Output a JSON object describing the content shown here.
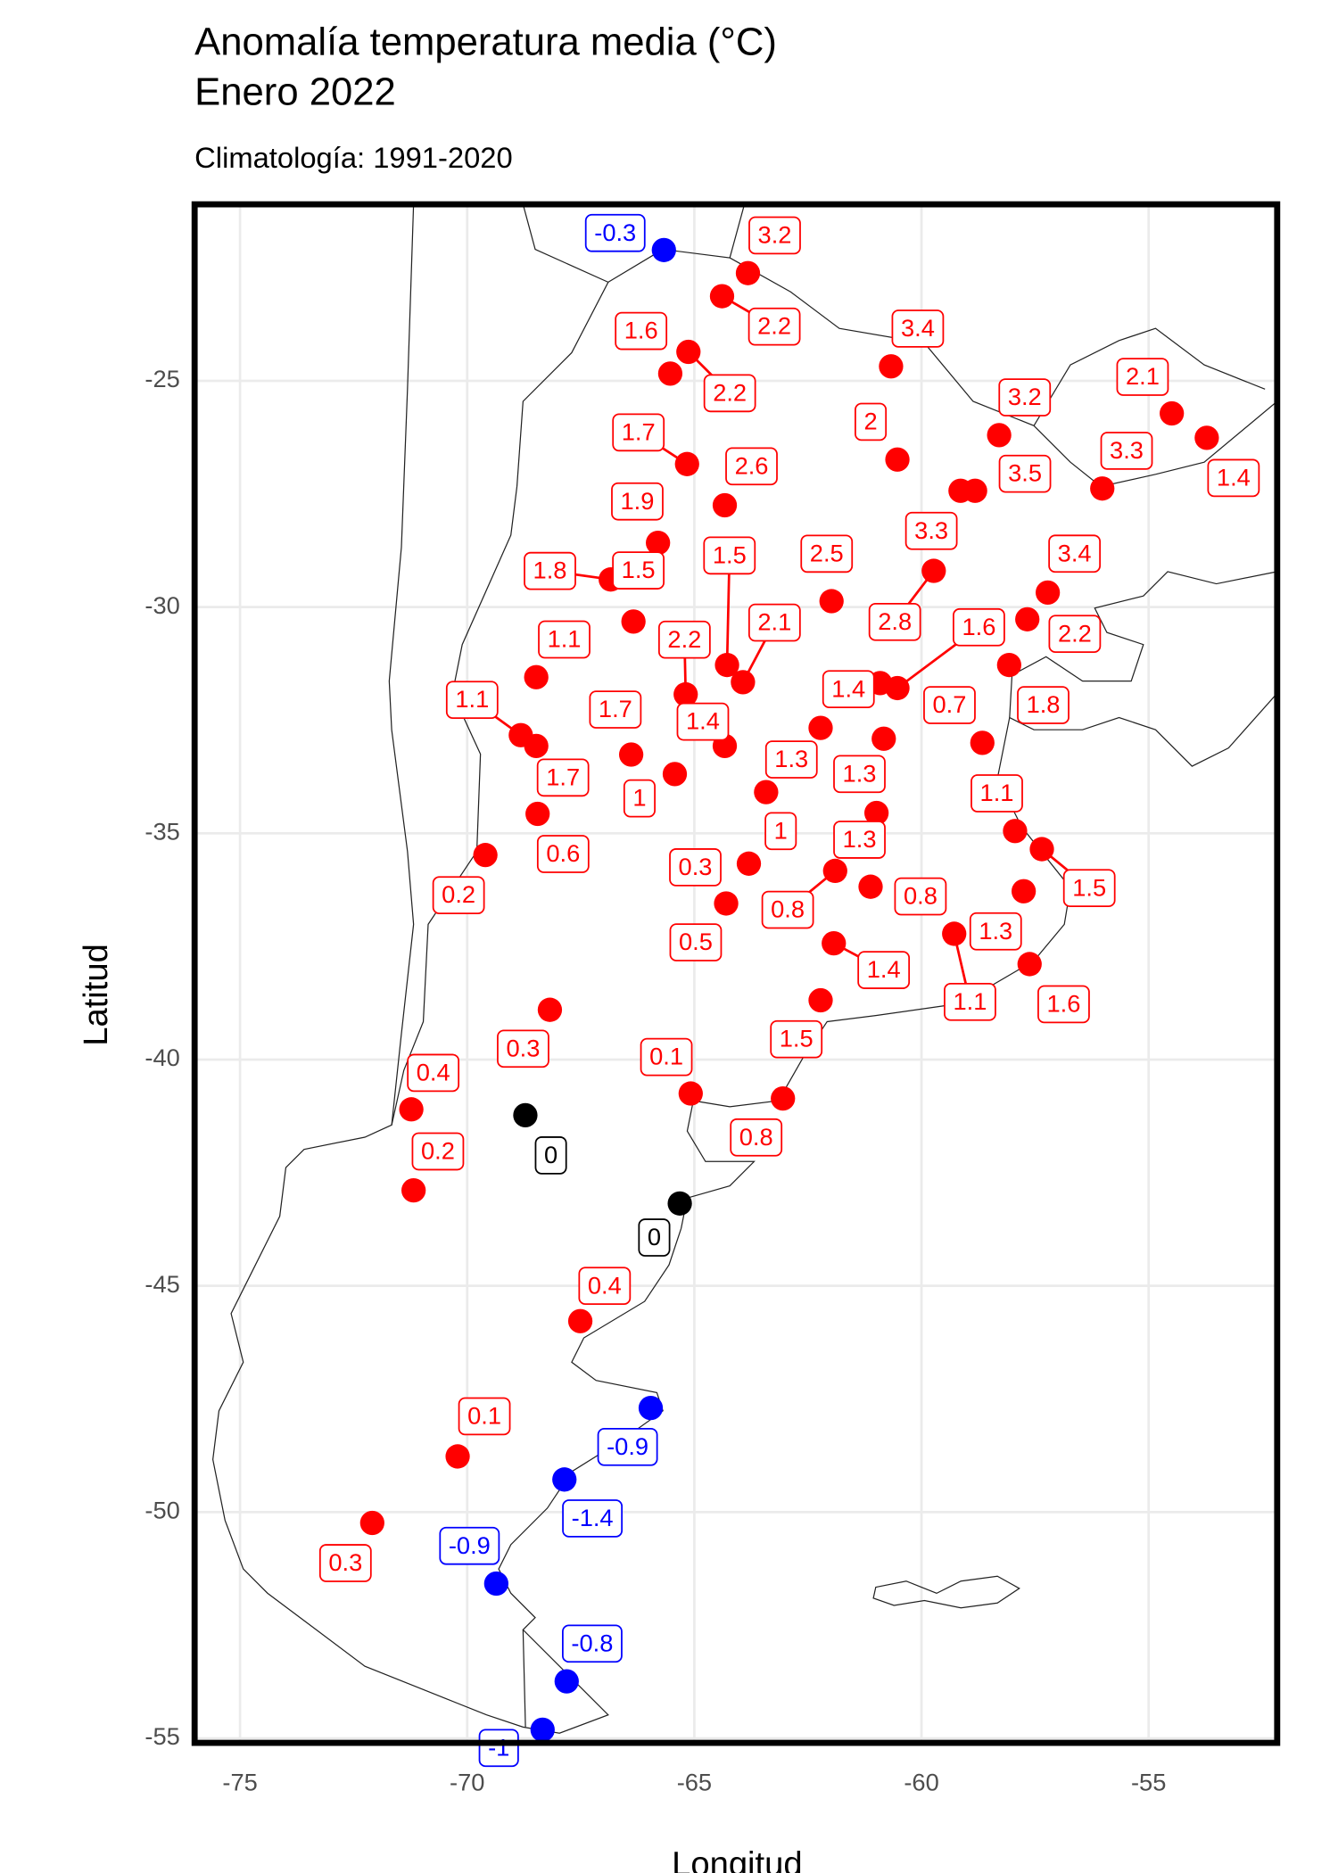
{
  "chart_data": {
    "type": "scatter",
    "title": [
      "Anomalía temperatura media (°C)",
      "Enero 2022"
    ],
    "subtitle": "Climatología: 1991-2020",
    "x_label": "Longitud",
    "y_label": "Latitud",
    "xlim": [
      -76,
      -52.17
    ],
    "ylim": [
      -55.1,
      -21.1
    ],
    "xticks": [
      -75,
      -70,
      -65,
      -60,
      -55
    ],
    "yticks": [
      -25,
      -30,
      -35,
      -40,
      -45,
      -50,
      -55
    ],
    "grid": true,
    "colors": {
      "positive": "#ff0000",
      "negative": "#0000ff",
      "zero": "#000000"
    },
    "x": [
      -65.67,
      -63.82,
      -64.39,
      -65.13,
      -65.53,
      -60.67,
      -60.53,
      -58.29,
      -54.49,
      -53.72,
      -56.02,
      -59.14,
      -58.82,
      -59.73,
      -65.16,
      -64.33,
      -65.8,
      -66.84,
      -66.34,
      -61.98,
      -64.28,
      -63.93,
      -65.19,
      -64.33,
      -57.22,
      -57.67,
      -58.07,
      -60.53,
      -60.91,
      -62.22,
      -60.83,
      -58.66,
      -63.42,
      -60.99,
      -63.8,
      -64.3,
      -61.9,
      -61.12,
      -57.94,
      -57.35,
      -57.75,
      -59.28,
      -57.62,
      -61.93,
      -62.22,
      -69.6,
      -68.48,
      -68.82,
      -68.48,
      -68.45,
      -66.39,
      -65.43,
      -68.18,
      -65.08,
      -63.05,
      -71.23,
      -71.18,
      -67.51,
      -70.21,
      -72.09,
      -68.72,
      -65.32,
      -65.96,
      -67.86,
      -69.36,
      -67.81,
      -68.34
    ],
    "y": [
      -22.11,
      -22.62,
      -23.13,
      -24.36,
      -24.84,
      -24.68,
      -26.74,
      -26.2,
      -25.72,
      -26.26,
      -27.38,
      -27.43,
      -27.43,
      -29.2,
      -26.84,
      -27.75,
      -28.58,
      -29.39,
      -30.32,
      -29.87,
      -31.28,
      -31.66,
      -31.93,
      -33.07,
      -29.68,
      -30.27,
      -31.28,
      -31.79,
      -31.68,
      -32.67,
      -32.91,
      -33.0,
      -34.09,
      -34.55,
      -35.67,
      -36.55,
      -35.83,
      -36.18,
      -34.95,
      -35.35,
      -36.28,
      -37.22,
      -37.89,
      -37.43,
      -38.69,
      -35.48,
      -31.55,
      -32.83,
      -33.07,
      -34.57,
      -33.26,
      -33.69,
      -38.9,
      -40.75,
      -40.86,
      -41.1,
      -42.89,
      -45.78,
      -48.77,
      -50.24,
      -41.23,
      -43.18,
      -47.7,
      -49.28,
      -51.58,
      -53.74,
      -54.81
    ],
    "values": [
      -0.3,
      3.2,
      2.2,
      2.2,
      1.6,
      3.4,
      2,
      3.2,
      2.1,
      1.4,
      3.3,
      3.3,
      3.5,
      2.8,
      1.7,
      2.6,
      1.9,
      1.8,
      1.5,
      2.5,
      1.5,
      2.1,
      2.2,
      1.4,
      3.4,
      2.2,
      1.8,
      1.6,
      1.4,
      1.3,
      1.3,
      0.7,
      1,
      1.3,
      0.3,
      0.5,
      0.8,
      0.8,
      1.1,
      1.5,
      1.3,
      1.1,
      1.6,
      1.4,
      1.5,
      0.2,
      1.1,
      1.1,
      1.7,
      0.6,
      1.7,
      1,
      0.3,
      0.1,
      0.8,
      0.4,
      0.2,
      0.4,
      0.1,
      0.3,
      0,
      0,
      -0.9,
      -1.4,
      -0.9,
      -0.8,
      -1
    ]
  }
}
